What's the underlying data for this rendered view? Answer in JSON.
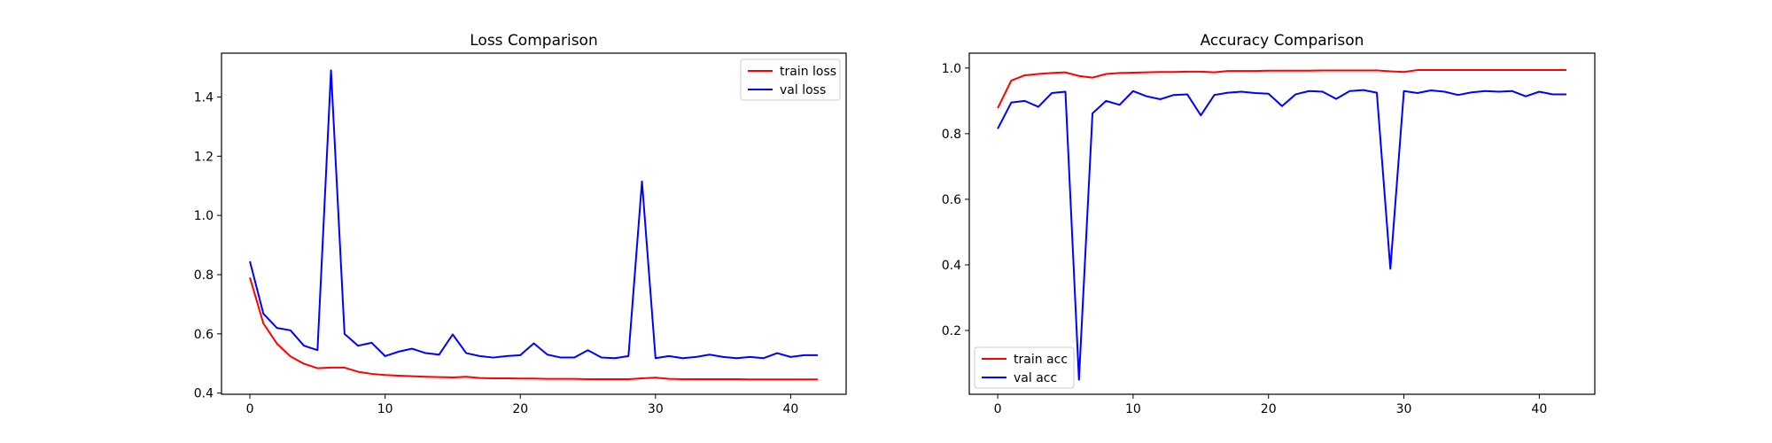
{
  "chart_data": [
    {
      "type": "line",
      "title": "Loss Comparison",
      "xlabel": "",
      "ylabel": "",
      "xlim": [
        -2.1,
        44.1
      ],
      "ylim": [
        0.396,
        1.548
      ],
      "x_ticks": [
        0,
        10,
        20,
        30,
        40
      ],
      "y_ticks": [
        0.4,
        0.6,
        0.8,
        1.0,
        1.2,
        1.4
      ],
      "y_tick_labels": [
        "0.4",
        "0.6",
        "0.8",
        "1.0",
        "1.2",
        "1.4"
      ],
      "grid": false,
      "legend": "upper right",
      "series": [
        {
          "name": "train loss",
          "color": "#ff0000",
          "x": [
            0,
            1,
            2,
            3,
            4,
            5,
            6,
            7,
            8,
            9,
            10,
            11,
            12,
            13,
            14,
            15,
            16,
            17,
            18,
            19,
            20,
            21,
            22,
            23,
            24,
            25,
            26,
            27,
            28,
            29,
            30,
            31,
            32,
            33,
            34,
            35,
            36,
            37,
            38,
            39,
            40,
            41,
            42
          ],
          "values": [
            0.79,
            0.635,
            0.567,
            0.524,
            0.499,
            0.484,
            0.486,
            0.486,
            0.472,
            0.465,
            0.461,
            0.459,
            0.457,
            0.455,
            0.454,
            0.453,
            0.455,
            0.451,
            0.45,
            0.45,
            0.449,
            0.449,
            0.448,
            0.448,
            0.448,
            0.447,
            0.447,
            0.447,
            0.447,
            0.45,
            0.452,
            0.448,
            0.447,
            0.447,
            0.447,
            0.447,
            0.447,
            0.446,
            0.446,
            0.446,
            0.446,
            0.446,
            0.446
          ]
        },
        {
          "name": "val loss",
          "color": "#0000ff",
          "x": [
            0,
            1,
            2,
            3,
            4,
            5,
            6,
            7,
            8,
            9,
            10,
            11,
            12,
            13,
            14,
            15,
            16,
            17,
            18,
            19,
            20,
            21,
            22,
            23,
            24,
            25,
            26,
            27,
            28,
            29,
            30,
            31,
            32,
            33,
            34,
            35,
            36,
            37,
            38,
            39,
            40,
            41,
            42
          ],
          "values": [
            0.845,
            0.668,
            0.62,
            0.612,
            0.56,
            0.545,
            1.49,
            0.6,
            0.56,
            0.57,
            0.525,
            0.54,
            0.55,
            0.535,
            0.53,
            0.598,
            0.535,
            0.525,
            0.52,
            0.525,
            0.528,
            0.568,
            0.53,
            0.52,
            0.52,
            0.545,
            0.52,
            0.518,
            0.525,
            1.115,
            0.518,
            0.525,
            0.518,
            0.522,
            0.53,
            0.522,
            0.518,
            0.522,
            0.518,
            0.535,
            0.522,
            0.528,
            0.528
          ]
        }
      ]
    },
    {
      "type": "line",
      "title": "Accuracy Comparison",
      "xlabel": "",
      "ylabel": "",
      "xlim": [
        -2.1,
        44.1
      ],
      "ylim": [
        0.0055,
        1.0455
      ],
      "x_ticks": [
        0,
        10,
        20,
        30,
        40
      ],
      "y_ticks": [
        0.2,
        0.4,
        0.6,
        0.8,
        1.0
      ],
      "y_tick_labels": [
        "0.2",
        "0.4",
        "0.6",
        "0.8",
        "1.0"
      ],
      "grid": false,
      "legend": "lower left",
      "series": [
        {
          "name": "train acc",
          "color": "#ff0000",
          "x": [
            0,
            1,
            2,
            3,
            4,
            5,
            6,
            7,
            8,
            9,
            10,
            11,
            12,
            13,
            14,
            15,
            16,
            17,
            18,
            19,
            20,
            21,
            22,
            23,
            24,
            25,
            26,
            27,
            28,
            29,
            30,
            31,
            32,
            33,
            34,
            35,
            36,
            37,
            38,
            39,
            40,
            41,
            42
          ],
          "values": [
            0.878,
            0.962,
            0.978,
            0.982,
            0.985,
            0.987,
            0.976,
            0.971,
            0.982,
            0.985,
            0.986,
            0.987,
            0.988,
            0.988,
            0.989,
            0.989,
            0.987,
            0.991,
            0.991,
            0.991,
            0.992,
            0.992,
            0.992,
            0.992,
            0.993,
            0.993,
            0.993,
            0.993,
            0.993,
            0.99,
            0.988,
            0.994,
            0.994,
            0.994,
            0.994,
            0.994,
            0.994,
            0.994,
            0.994,
            0.994,
            0.994,
            0.994,
            0.994
          ]
        },
        {
          "name": "val acc",
          "color": "#0000ff",
          "x": [
            0,
            1,
            2,
            3,
            4,
            5,
            6,
            7,
            8,
            9,
            10,
            11,
            12,
            13,
            14,
            15,
            16,
            17,
            18,
            19,
            20,
            21,
            22,
            23,
            24,
            25,
            26,
            27,
            28,
            29,
            30,
            31,
            32,
            33,
            34,
            35,
            36,
            37,
            38,
            39,
            40,
            41,
            42
          ],
          "values": [
            0.815,
            0.895,
            0.9,
            0.882,
            0.924,
            0.928,
            0.05,
            0.862,
            0.9,
            0.888,
            0.93,
            0.914,
            0.905,
            0.918,
            0.92,
            0.856,
            0.918,
            0.925,
            0.928,
            0.924,
            0.922,
            0.884,
            0.92,
            0.93,
            0.928,
            0.906,
            0.93,
            0.933,
            0.925,
            0.388,
            0.93,
            0.924,
            0.932,
            0.928,
            0.918,
            0.926,
            0.93,
            0.928,
            0.93,
            0.914,
            0.928,
            0.92,
            0.92
          ]
        }
      ]
    }
  ]
}
